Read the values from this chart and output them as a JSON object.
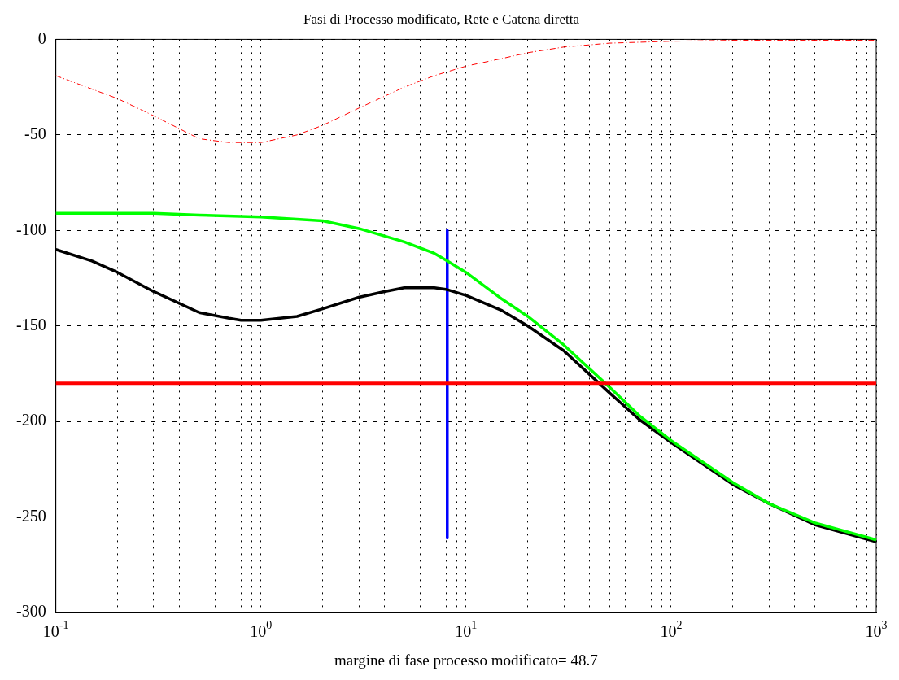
{
  "chart_data": {
    "type": "line",
    "title": "Fasi di Processo modificato, Rete e Catena diretta",
    "xlabel": "margine di fase processo modificato= 48.7",
    "log": "x",
    "grid": true,
    "xlim": [
      0.1,
      1000
    ],
    "ylim": [
      -300,
      0
    ],
    "yticks": [
      -300,
      -250,
      -200,
      -150,
      -100,
      -50,
      0
    ],
    "xticks": [
      {
        "value": 0.1,
        "label": "10$^{-1}$"
      },
      {
        "value": 0.2,
        "label": null
      },
      {
        "value": 0.3,
        "label": null
      },
      {
        "value": 0.4,
        "label": null
      },
      {
        "value": 0.5,
        "label": null
      },
      {
        "value": 0.6,
        "label": null
      },
      {
        "value": 0.7,
        "label": null
      },
      {
        "value": 0.8,
        "label": null
      },
      {
        "value": 0.9,
        "label": null
      },
      {
        "value": 1,
        "label": "10$^{0}$"
      },
      {
        "value": 2,
        "label": null
      },
      {
        "value": 3,
        "label": null
      },
      {
        "value": 4,
        "label": null
      },
      {
        "value": 5,
        "label": null
      },
      {
        "value": 6,
        "label": null
      },
      {
        "value": 7,
        "label": null
      },
      {
        "value": 8,
        "label": null
      },
      {
        "value": 9,
        "label": null
      },
      {
        "value": 10,
        "label": "10$^{1}$"
      },
      {
        "value": 20,
        "label": null
      },
      {
        "value": 30,
        "label": null
      },
      {
        "value": 40,
        "label": null
      },
      {
        "value": 50,
        "label": null
      },
      {
        "value": 60,
        "label": null
      },
      {
        "value": 70,
        "label": null
      },
      {
        "value": 80,
        "label": null
      },
      {
        "value": 90,
        "label": null
      },
      {
        "value": 100,
        "label": "10$^{2}$"
      },
      {
        "value": 200,
        "label": null
      },
      {
        "value": 300,
        "label": null
      },
      {
        "value": 400,
        "label": null
      },
      {
        "value": 500,
        "label": null
      },
      {
        "value": 600,
        "label": null
      },
      {
        "value": 700,
        "label": null
      },
      {
        "value": 800,
        "label": null
      },
      {
        "value": 900,
        "label": null
      },
      {
        "value": 1000,
        "label": "10$^{3}$"
      }
    ],
    "ref_lines": [
      {
        "axis": "y",
        "value": -180,
        "color": "#ff0000"
      }
    ],
    "series": [
      {
        "color": "#ff0000",
        "line_style": "dashed",
        "x": [
          0.1,
          0.2,
          0.3,
          0.5,
          0.7,
          1,
          1.5,
          2,
          3,
          5,
          7,
          10,
          15,
          20,
          30,
          50,
          100,
          200,
          500,
          1000
        ],
        "values": [
          -19,
          -31,
          -40,
          -52,
          -54,
          -54,
          -50,
          -45,
          -36,
          -25,
          -19,
          -14,
          -10,
          -7,
          -4,
          -2,
          -1,
          -0.5,
          -0.5,
          -0.5
        ]
      },
      {
        "color": "#00ff00",
        "x": [
          0.1,
          0.3,
          0.5,
          1,
          2,
          3,
          5,
          7,
          8.1,
          10,
          15,
          20,
          30,
          50,
          70,
          100,
          200,
          300,
          500,
          1000
        ],
        "values": [
          -91,
          -91,
          -92,
          -93,
          -95,
          -99,
          -106,
          -112,
          -116,
          -122,
          -136,
          -145,
          -160,
          -182,
          -197,
          -210,
          -232,
          -243,
          -253,
          -262
        ]
      },
      {
        "color": "#000000",
        "x": [
          0.1,
          0.15,
          0.2,
          0.3,
          0.5,
          0.7,
          0.8,
          1,
          1.5,
          2,
          3,
          4,
          5,
          7,
          8.1,
          10,
          15,
          20,
          30,
          50,
          70,
          100,
          200,
          300,
          500,
          1000
        ],
        "values": [
          -110,
          -116,
          -122,
          -132,
          -143,
          -146,
          -147,
          -147,
          -145,
          -141,
          -135,
          -132,
          -130,
          -130,
          -131,
          -134,
          -142,
          -150,
          -163,
          -185,
          -199,
          -211,
          -233,
          -243,
          -254,
          -263
        ]
      },
      {
        "color": "#0000ff",
        "x": [
          8.1,
          8.1
        ],
        "values": [
          -100,
          -261
        ]
      }
    ]
  }
}
